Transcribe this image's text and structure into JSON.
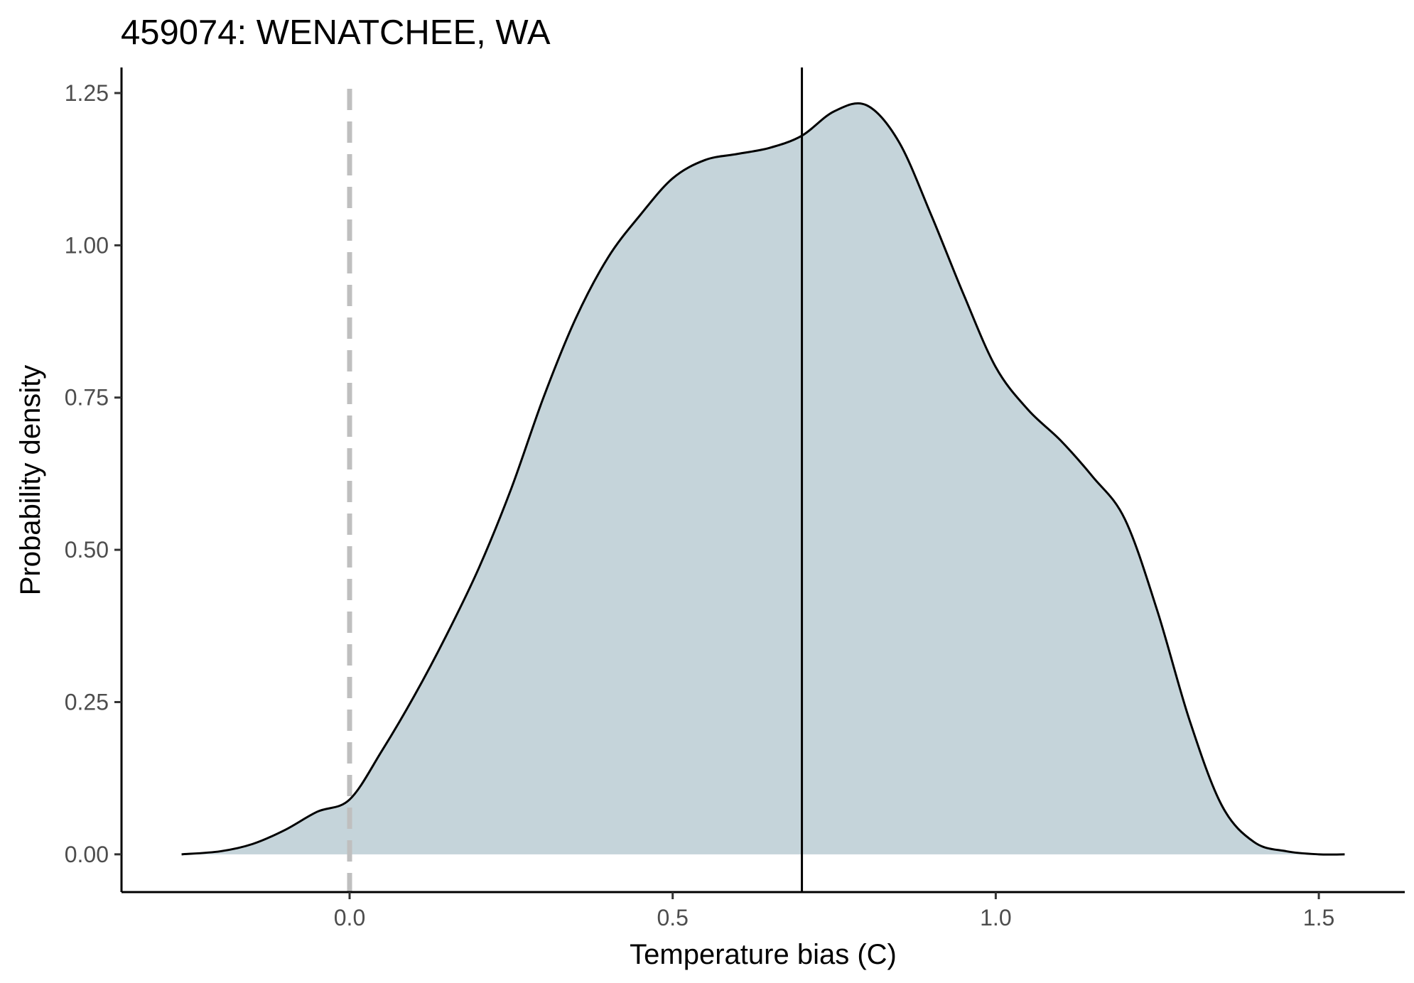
{
  "chart_data": {
    "type": "area",
    "title": "459074: WENATCHEE, WA",
    "xlabel": "Temperature bias (C)",
    "ylabel": "Probability density",
    "xlim": [
      -0.353,
      1.633
    ],
    "ylim": [
      -0.062,
      1.292
    ],
    "x_ticks": [
      0.0,
      0.5,
      1.0,
      1.5
    ],
    "x_tick_labels": [
      "0.0",
      "0.5",
      "1.0",
      "1.5"
    ],
    "y_ticks": [
      0.0,
      0.25,
      0.5,
      0.75,
      1.0,
      1.25
    ],
    "y_tick_labels": [
      "0.00",
      "0.25",
      "0.50",
      "0.75",
      "1.00",
      "1.25"
    ],
    "grid": false,
    "legend": "none",
    "fill_color": "#c5d4da",
    "line_color": "#000000",
    "reference_lines": [
      {
        "label": "zero",
        "x": 0.0,
        "style": "dashed",
        "color": "#bfbfbf"
      },
      {
        "label": "mean",
        "x": 0.7,
        "style": "solid",
        "color": "#000000"
      }
    ],
    "density": {
      "x": [
        -0.26,
        -0.2,
        -0.15,
        -0.1,
        -0.05,
        0.0,
        0.05,
        0.1,
        0.15,
        0.2,
        0.25,
        0.3,
        0.35,
        0.4,
        0.45,
        0.5,
        0.55,
        0.6,
        0.65,
        0.7,
        0.75,
        0.8,
        0.85,
        0.9,
        0.95,
        1.0,
        1.05,
        1.1,
        1.15,
        1.2,
        1.25,
        1.3,
        1.35,
        1.4,
        1.45,
        1.5,
        1.54
      ],
      "y": [
        0.0,
        0.005,
        0.017,
        0.04,
        0.07,
        0.09,
        0.17,
        0.26,
        0.36,
        0.47,
        0.6,
        0.75,
        0.88,
        0.98,
        1.05,
        1.11,
        1.14,
        1.15,
        1.16,
        1.18,
        1.22,
        1.23,
        1.17,
        1.05,
        0.92,
        0.8,
        0.73,
        0.68,
        0.62,
        0.55,
        0.4,
        0.22,
        0.08,
        0.02,
        0.005,
        0.0,
        0.0
      ]
    }
  }
}
